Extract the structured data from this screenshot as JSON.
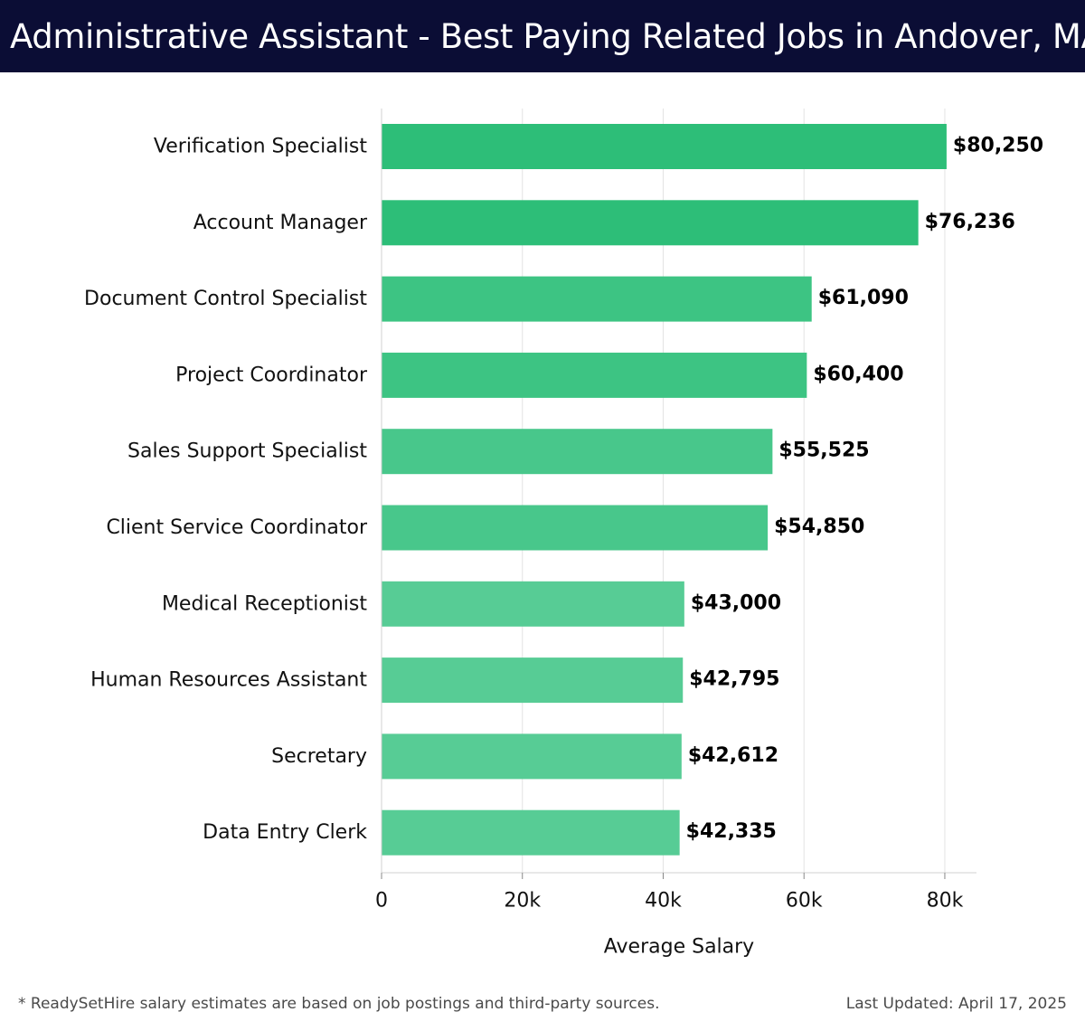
{
  "title": "Administrative Assistant - Best Paying Related Jobs in Andover, MA",
  "footer": {
    "note": "* ReadySetHire salary estimates are based on job postings and third-party sources.",
    "updated": "Last Updated: April 17, 2025"
  },
  "chart_data": {
    "type": "bar",
    "orientation": "horizontal",
    "categories": [
      "Verification Specialist",
      "Account Manager",
      "Document Control Specialist",
      "Project Coordinator",
      "Sales Support Specialist",
      "Client Service Coordinator",
      "Medical Receptionist",
      "Human Resources Assistant",
      "Secretary",
      "Data Entry Clerk"
    ],
    "values": [
      80250,
      76236,
      61090,
      60400,
      55525,
      54850,
      43000,
      42795,
      42612,
      42335
    ],
    "data_labels": [
      "$80,250",
      "$76,236",
      "$61,090",
      "$60,400",
      "$55,525",
      "$54,850",
      "$43,000",
      "$42,795",
      "$42,612",
      "$42,335"
    ],
    "xlabel": "Average Salary",
    "ylabel": "",
    "xlim": [
      0,
      84500
    ],
    "x_ticks": [
      0,
      20000,
      40000,
      60000,
      80000
    ],
    "x_tick_labels": [
      "0",
      "20k",
      "40k",
      "60k",
      "80k"
    ],
    "grid": true,
    "bar_colors": [
      "#2dbe78",
      "#2dbe78",
      "#3dc483",
      "#3dc483",
      "#48c78b",
      "#48c78b",
      "#57cc95",
      "#57cc95",
      "#57cc95",
      "#57cc95"
    ]
  }
}
